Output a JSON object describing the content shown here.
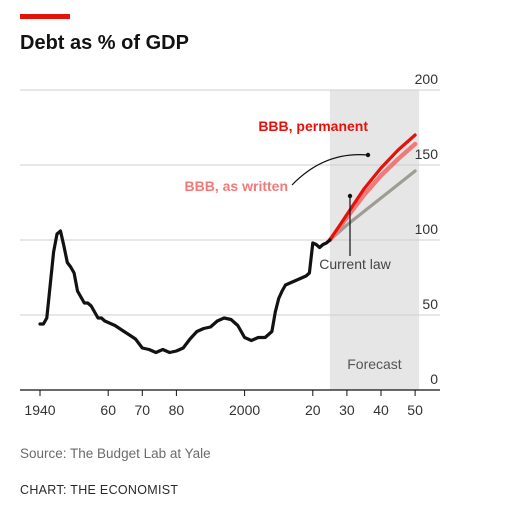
{
  "title": "Debt as % of GDP",
  "source": "Source: The Budget Lab at Yale",
  "credit": "CHART: THE ECONOMIST",
  "colors": {
    "accent": "#e3120b",
    "historical": "#121212",
    "bbb_permanent": "#e3120b",
    "bbb_as_written": "#f07a7a",
    "current_law": "#9d9d92",
    "forecast_shade": "#e6e6e6",
    "grid": "#cfcfcf"
  },
  "chart_data": {
    "type": "line",
    "title": "Debt as % of GDP",
    "xlim": [
      1940,
      2050
    ],
    "ylim": [
      0,
      200
    ],
    "y_ticks": [
      0,
      50,
      100,
      150,
      200
    ],
    "y_tick_labels": [
      "0",
      "50",
      "100",
      "150",
      "200"
    ],
    "y_axis_side": "right",
    "x_ticks": [
      1940,
      1960,
      1970,
      1980,
      2000,
      2020,
      2030,
      2040,
      2050
    ],
    "x_tick_labels": [
      "1940",
      "60",
      "70",
      "80",
      "2000",
      "20",
      "30",
      "40",
      "50"
    ],
    "grid": "horizontal",
    "forecast_region": {
      "from": 2025,
      "to": 2050,
      "label": "Forecast"
    },
    "series": [
      {
        "key": "historical",
        "x": [
          1940,
          1941,
          1942,
          1943,
          1944,
          1945,
          1946,
          1947,
          1948,
          1949,
          1950,
          1951,
          1952,
          1953,
          1954,
          1955,
          1956,
          1957,
          1958,
          1959,
          1960,
          1962,
          1964,
          1966,
          1968,
          1970,
          1972,
          1974,
          1976,
          1978,
          1980,
          1982,
          1984,
          1986,
          1988,
          1990,
          1992,
          1994,
          1996,
          1998,
          2000,
          2002,
          2004,
          2006,
          2008,
          2009,
          2010,
          2011,
          2012,
          2014,
          2016,
          2018,
          2019,
          2020,
          2021,
          2022,
          2023,
          2024,
          2025
        ],
        "y": [
          44,
          44,
          48,
          70,
          92,
          104,
          106,
          96,
          85,
          82,
          78,
          66,
          62,
          58,
          58,
          56,
          52,
          48,
          48,
          46,
          45,
          43,
          40,
          37,
          34,
          28,
          27,
          25,
          27,
          25,
          26,
          28,
          34,
          39,
          41,
          42,
          46,
          48,
          47,
          43,
          35,
          33,
          35,
          35,
          39,
          52,
          61,
          66,
          70,
          72,
          74,
          76,
          78,
          98,
          97,
          95,
          97,
          98,
          100
        ]
      },
      {
        "key": "bbb_permanent",
        "name": "BBB, permanent",
        "x": [
          2025,
          2030,
          2035,
          2040,
          2045,
          2050
        ],
        "y": [
          100,
          117,
          134,
          148,
          160,
          170
        ]
      },
      {
        "key": "bbb_as_written",
        "name": "BBB, as written",
        "x": [
          2025,
          2030,
          2035,
          2040,
          2045,
          2050
        ],
        "y": [
          100,
          115,
          130,
          143,
          154,
          164
        ]
      },
      {
        "key": "current_law",
        "name": "Current law",
        "x": [
          2025,
          2030,
          2035,
          2040,
          2045,
          2050
        ],
        "y": [
          100,
          110,
          119,
          128,
          137,
          146
        ]
      }
    ],
    "annotations": [
      {
        "text": "BBB, permanent",
        "series": "bbb_permanent"
      },
      {
        "text": "BBB, as written",
        "series": "bbb_as_written"
      },
      {
        "text": "Current law",
        "series": "current_law"
      }
    ]
  }
}
